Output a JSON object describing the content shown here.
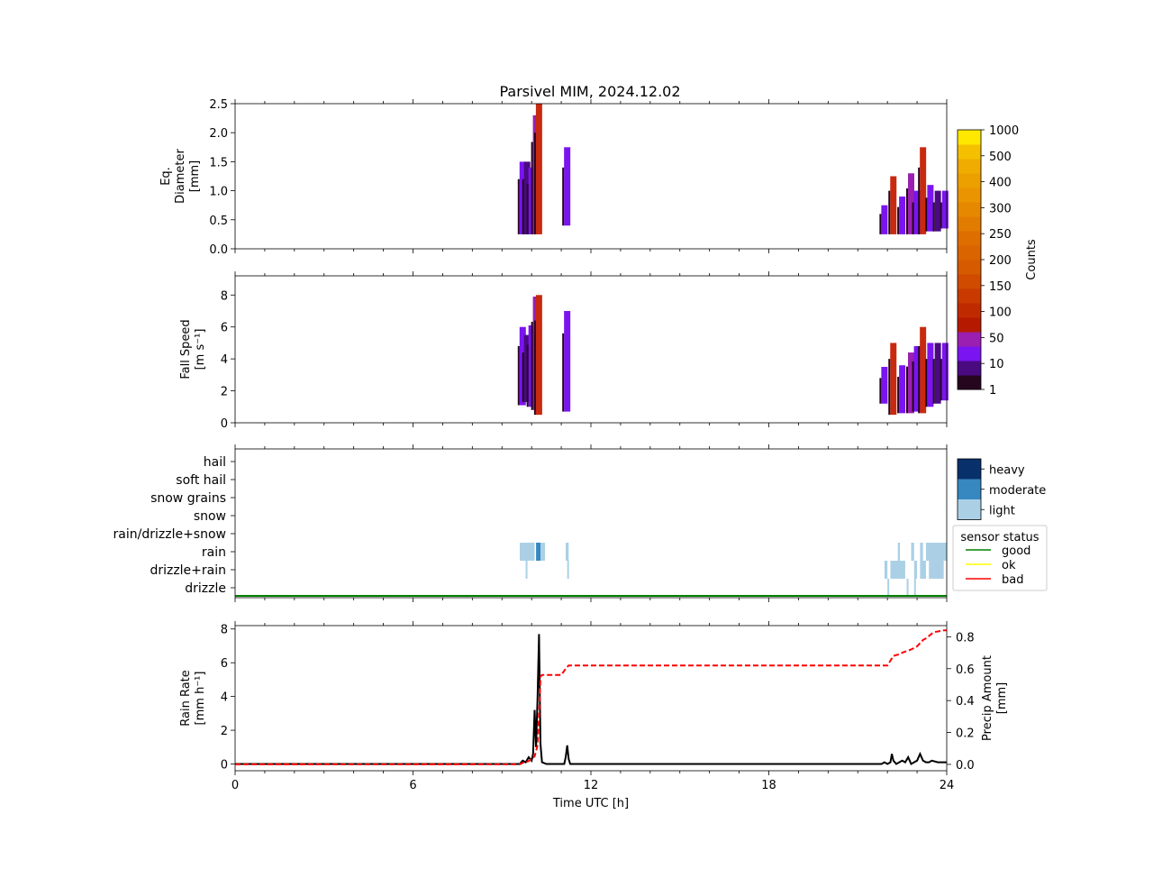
{
  "chart_data": [
    {
      "type": "heatmap",
      "title": "Parsivel MIM, 2024.12.02",
      "ylabel": [
        "Eq.",
        "Diameter",
        "[mm]"
      ],
      "ylim": [
        0,
        2.5
      ],
      "xlim": [
        0,
        24
      ],
      "yticks": [
        "0.0",
        "0.5",
        "1.0",
        "1.5",
        "2.0",
        "2.5"
      ],
      "columns": [
        {
          "x": 9.7,
          "ymin": 0.25,
          "ymax": 1.5,
          "color": "#7a14f0"
        },
        {
          "x": 9.85,
          "ymin": 0.25,
          "ymax": 1.5,
          "color": "#4a0a80"
        },
        {
          "x": 10.0,
          "ymin": 0.25,
          "ymax": 1.4,
          "color": "#7a14f0"
        },
        {
          "x": 10.15,
          "ymin": 0.25,
          "ymax": 2.3,
          "color": "#9b1fb0"
        },
        {
          "x": 10.25,
          "ymin": 0.25,
          "ymax": 2.5,
          "color": "#c82a10"
        },
        {
          "x": 11.2,
          "ymin": 0.4,
          "ymax": 1.75,
          "color": "#7a14f0"
        },
        {
          "x": 21.9,
          "ymin": 0.25,
          "ymax": 0.75,
          "color": "#7a14f0"
        },
        {
          "x": 22.2,
          "ymin": 0.25,
          "ymax": 1.25,
          "color": "#c82a10"
        },
        {
          "x": 22.5,
          "ymin": 0.25,
          "ymax": 0.9,
          "color": "#7a14f0"
        },
        {
          "x": 22.8,
          "ymin": 0.25,
          "ymax": 1.3,
          "color": "#9b1fb0"
        },
        {
          "x": 23.0,
          "ymin": 0.25,
          "ymax": 1.0,
          "color": "#7a14f0"
        },
        {
          "x": 23.2,
          "ymin": 0.25,
          "ymax": 1.75,
          "color": "#c82a10"
        },
        {
          "x": 23.45,
          "ymin": 0.3,
          "ymax": 1.1,
          "color": "#7a14f0"
        },
        {
          "x": 23.7,
          "ymin": 0.3,
          "ymax": 1.0,
          "color": "#4a0a80"
        },
        {
          "x": 23.95,
          "ymin": 0.35,
          "ymax": 1.0,
          "color": "#7a14f0"
        }
      ]
    },
    {
      "type": "heatmap",
      "ylabel": [
        "Fall Speed",
        "[m s⁻¹]"
      ],
      "ylim": [
        0,
        9.2
      ],
      "xlim": [
        0,
        24
      ],
      "yticks": [
        "0",
        "2",
        "4",
        "6",
        "8"
      ],
      "columns": [
        {
          "x": 9.7,
          "ymin": 1.1,
          "ymax": 6.0,
          "color": "#7a14f0"
        },
        {
          "x": 9.85,
          "ymin": 1.3,
          "ymax": 5.5,
          "color": "#4a0a80"
        },
        {
          "x": 10.0,
          "ymin": 1.0,
          "ymax": 6.1,
          "color": "#7a14f0"
        },
        {
          "x": 10.15,
          "ymin": 0.8,
          "ymax": 7.9,
          "color": "#9b1fb0"
        },
        {
          "x": 10.25,
          "ymin": 0.5,
          "ymax": 8.0,
          "color": "#c82a10"
        },
        {
          "x": 11.2,
          "ymin": 0.7,
          "ymax": 7.0,
          "color": "#7a14f0"
        },
        {
          "x": 21.9,
          "ymin": 1.2,
          "ymax": 3.5,
          "color": "#7a14f0"
        },
        {
          "x": 22.2,
          "ymin": 0.5,
          "ymax": 5.0,
          "color": "#c82a10"
        },
        {
          "x": 22.5,
          "ymin": 0.6,
          "ymax": 3.6,
          "color": "#7a14f0"
        },
        {
          "x": 22.8,
          "ymin": 0.6,
          "ymax": 4.4,
          "color": "#9b1fb0"
        },
        {
          "x": 23.0,
          "ymin": 0.7,
          "ymax": 4.8,
          "color": "#7a14f0"
        },
        {
          "x": 23.2,
          "ymin": 0.6,
          "ymax": 6.0,
          "color": "#c82a10"
        },
        {
          "x": 23.45,
          "ymin": 1.0,
          "ymax": 5.0,
          "color": "#7a14f0"
        },
        {
          "x": 23.7,
          "ymin": 1.2,
          "ymax": 5.0,
          "color": "#4a0a80"
        },
        {
          "x": 23.95,
          "ymin": 1.4,
          "ymax": 5.0,
          "color": "#7a14f0"
        }
      ]
    },
    {
      "type": "heatmap",
      "categories": [
        "drizzle",
        "drizzle+rain",
        "rain",
        "rain/drizzle+snow",
        "snow",
        "snow grains",
        "soft hail",
        "hail"
      ],
      "xlim": [
        0,
        24
      ],
      "intensity_colors": {
        "light": "#abd0e6",
        "moderate": "#3787c0",
        "heavy": "#08306b"
      },
      "cells": [
        {
          "x0": 9.6,
          "x1": 10.1,
          "cat": "rain",
          "level": "light"
        },
        {
          "x0": 10.15,
          "x1": 10.3,
          "cat": "rain",
          "level": "moderate"
        },
        {
          "x0": 10.3,
          "x1": 10.45,
          "cat": "rain",
          "level": "light"
        },
        {
          "x0": 11.15,
          "x1": 11.25,
          "cat": "rain",
          "level": "light"
        },
        {
          "x0": 9.8,
          "x1": 9.85,
          "cat": "drizzle+rain",
          "level": "light"
        },
        {
          "x0": 11.2,
          "x1": 11.25,
          "cat": "drizzle+rain",
          "level": "light"
        },
        {
          "x0": 22.35,
          "x1": 22.42,
          "cat": "rain",
          "level": "light"
        },
        {
          "x0": 22.8,
          "x1": 22.9,
          "cat": "rain",
          "level": "light"
        },
        {
          "x0": 23.1,
          "x1": 23.2,
          "cat": "rain",
          "level": "light"
        },
        {
          "x0": 23.3,
          "x1": 24.0,
          "cat": "rain",
          "level": "light"
        },
        {
          "x0": 21.9,
          "x1": 22.0,
          "cat": "drizzle+rain",
          "level": "light"
        },
        {
          "x0": 22.1,
          "x1": 22.6,
          "cat": "drizzle+rain",
          "level": "light"
        },
        {
          "x0": 22.9,
          "x1": 23.0,
          "cat": "drizzle+rain",
          "level": "light"
        },
        {
          "x0": 23.1,
          "x1": 23.3,
          "cat": "drizzle+rain",
          "level": "light"
        },
        {
          "x0": 23.4,
          "x1": 23.9,
          "cat": "drizzle+rain",
          "level": "light"
        },
        {
          "x0": 22.0,
          "x1": 22.05,
          "cat": "drizzle",
          "level": "light"
        },
        {
          "x0": 22.65,
          "x1": 22.7,
          "cat": "drizzle",
          "level": "light"
        },
        {
          "x0": 22.9,
          "x1": 22.95,
          "cat": "drizzle",
          "level": "light"
        }
      ],
      "intensity_legend": [
        "heavy",
        "moderate",
        "light"
      ],
      "sensor_status": {
        "title": "sensor status",
        "entries": [
          {
            "label": "good",
            "color": "#008000"
          },
          {
            "label": "ok",
            "color": "#ffff00"
          },
          {
            "label": "bad",
            "color": "#ff0000"
          }
        ],
        "line": {
          "status": "good",
          "color": "#008000"
        }
      }
    },
    {
      "type": "line",
      "ylabel": [
        "Rain Rate",
        "[mm h⁻¹]"
      ],
      "ylabel_right": [
        "Precip Amount",
        "[mm]"
      ],
      "xlabel": "Time UTC [h]",
      "xlim": [
        0,
        24
      ],
      "ylim": [
        -0.4,
        8.2
      ],
      "ylim_right": [
        -0.04,
        0.87
      ],
      "xticks": [
        "0",
        "6",
        "12",
        "18",
        "24"
      ],
      "yticks": [
        "0",
        "2",
        "4",
        "6",
        "8"
      ],
      "yticks_right": [
        "0.0",
        "0.2",
        "0.4",
        "0.6",
        "0.8"
      ],
      "series": [
        {
          "name": "",
          "axis": "left",
          "color": "#000000",
          "style": "solid",
          "x": [
            0,
            9.6,
            9.7,
            9.8,
            9.9,
            10.0,
            10.05,
            10.1,
            10.15,
            10.2,
            10.25,
            10.3,
            10.35,
            10.5,
            11.1,
            11.15,
            11.2,
            11.25,
            11.3,
            21.8,
            21.9,
            22.0,
            22.1,
            22.15,
            22.2,
            22.3,
            22.5,
            22.6,
            22.7,
            22.8,
            22.9,
            23.0,
            23.1,
            23.2,
            23.3,
            23.4,
            23.5,
            23.7,
            24.0
          ],
          "y": [
            0,
            0,
            0.2,
            0.1,
            0.4,
            0.2,
            0.6,
            3.2,
            1.0,
            4.0,
            7.7,
            1.2,
            0.1,
            0,
            0,
            0.4,
            1.1,
            0.3,
            0,
            0,
            0.1,
            0,
            0.1,
            0.6,
            0.2,
            0,
            0.2,
            0.1,
            0.4,
            0,
            0.1,
            0.2,
            0.6,
            0.2,
            0.1,
            0.1,
            0.2,
            0.1,
            0.1
          ]
        },
        {
          "name": "",
          "axis": "right",
          "color": "#ff0000",
          "style": "dashed",
          "x": [
            0,
            9.6,
            9.7,
            9.9,
            10.1,
            10.2,
            10.25,
            10.3,
            10.35,
            11.0,
            11.15,
            11.25,
            21.9,
            22.0,
            22.2,
            22.4,
            22.5,
            22.8,
            22.9,
            23.0,
            23.2,
            23.3,
            23.5,
            23.6,
            23.9,
            24.0
          ],
          "y": [
            0,
            0,
            0.01,
            0.02,
            0.05,
            0.12,
            0.3,
            0.55,
            0.56,
            0.56,
            0.6,
            0.62,
            0.62,
            0.62,
            0.68,
            0.69,
            0.7,
            0.72,
            0.73,
            0.74,
            0.78,
            0.79,
            0.82,
            0.83,
            0.84,
            0.84
          ]
        }
      ]
    }
  ],
  "colorbar": {
    "label": "Counts",
    "ticks": [
      "1",
      "10",
      "50",
      "100",
      "150",
      "200",
      "250",
      "300",
      "400",
      "500",
      "1000"
    ],
    "colors": [
      "#26061f",
      "#4a0a80",
      "#7a14f0",
      "#9b1fb0",
      "#b51a00",
      "#c02a00",
      "#c83a00",
      "#d04b00",
      "#d55a00",
      "#da6400",
      "#de6e00",
      "#e27c00",
      "#e68800",
      "#e99400",
      "#eca000",
      "#f0ac00",
      "#f5c000",
      "#ffe800"
    ]
  }
}
